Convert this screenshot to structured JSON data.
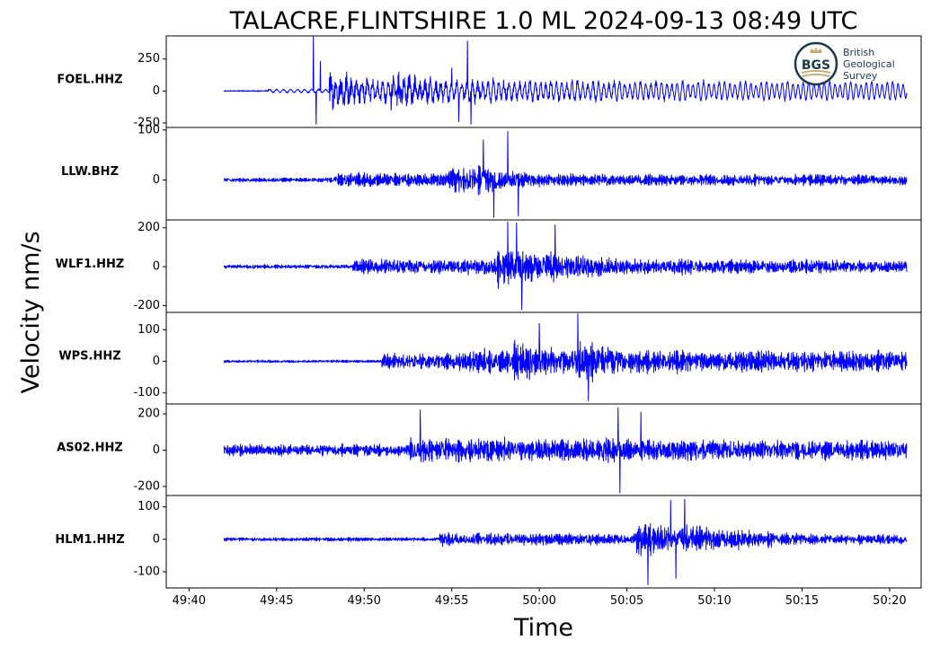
{
  "colors": {
    "trace": "#0000ff",
    "axes": "#000000",
    "logo": "#1c3a4a",
    "logo_accent": "#c9a66b"
  },
  "logo": {
    "mark": "BGS",
    "lines": [
      "British",
      "Geological",
      "Survey"
    ]
  },
  "chart_data": {
    "type": "line",
    "title": "TALACRE,FLINTSHIRE 1.0 ML   2024-09-13 08:49 UTC",
    "xlabel": "Time",
    "ylabel": "Velocity nm/s",
    "grid": false,
    "x_ticks": [
      "49:40",
      "49:45",
      "49:50",
      "49:55",
      "50:00",
      "50:05",
      "50:10",
      "50:15",
      "50:20"
    ],
    "x_range_seconds_from_49_40": [
      -1.3,
      41.8
    ],
    "data_range_seconds_from_49_40": [
      2.0,
      41.0
    ],
    "panels": [
      {
        "station": "FOEL.HHZ",
        "yticks": [
          250,
          0,
          -250
        ],
        "ylim": [
          -285,
          430
        ],
        "noise": 6,
        "segments": [
          {
            "t": 4.5,
            "amp": 12,
            "decay": 99,
            "period": 0.4,
            "kind": "sine"
          },
          {
            "t": 8.0,
            "amp": 60,
            "decay": 99,
            "period": 0.3,
            "kind": "ramp"
          },
          {
            "t": 8.0,
            "amp": 170,
            "decay": 3.2
          },
          {
            "t": 11.5,
            "amp": 150,
            "decay": 4.0
          },
          {
            "t": 16.0,
            "amp": 70,
            "decay": 12
          }
        ],
        "spikes": [
          {
            "t": 7.1,
            "v": 430
          },
          {
            "t": 7.25,
            "v": -260
          },
          {
            "t": 7.5,
            "v": 230
          },
          {
            "t": 15.0,
            "v": 180
          },
          {
            "t": 15.4,
            "v": -240
          },
          {
            "t": 15.9,
            "v": 390
          },
          {
            "t": 16.1,
            "v": -260
          }
        ]
      },
      {
        "station": "LLW.BHZ",
        "yticks": [
          100,
          0
        ],
        "ylim": [
          -80,
          105
        ],
        "noise": 6,
        "segments": [
          {
            "t": 8.3,
            "amp": 20,
            "decay": 99
          },
          {
            "t": 14.8,
            "amp": 45,
            "decay": 3.0
          },
          {
            "t": 16.5,
            "amp": 50,
            "decay": 3.5
          },
          {
            "t": 19.0,
            "amp": 22,
            "decay": 8
          }
        ],
        "spikes": [
          {
            "t": 16.8,
            "v": 80
          },
          {
            "t": 17.4,
            "v": -75
          },
          {
            "t": 18.2,
            "v": 97
          },
          {
            "t": 18.8,
            "v": -72
          }
        ]
      },
      {
        "station": "WLF1.HHZ",
        "yticks": [
          200,
          0,
          -200
        ],
        "ylim": [
          -235,
          240
        ],
        "noise": 14,
        "segments": [
          {
            "t": 9.3,
            "amp": 55,
            "decay": 99
          },
          {
            "t": 15.3,
            "amp": 60,
            "decay": 99
          },
          {
            "t": 17.5,
            "amp": 170,
            "decay": 4.5
          },
          {
            "t": 20.5,
            "amp": 120,
            "decay": 6.5
          },
          {
            "t": 26.0,
            "amp": 55,
            "decay": 12
          }
        ],
        "spikes": [
          {
            "t": 18.2,
            "v": 230
          },
          {
            "t": 19.0,
            "v": -220
          },
          {
            "t": 18.7,
            "v": 225
          },
          {
            "t": 20.9,
            "v": 215
          }
        ]
      },
      {
        "station": "WPS.HHZ",
        "yticks": [
          100,
          0,
          -100
        ],
        "ylim": [
          -135,
          155
        ],
        "noise": 6,
        "segments": [
          {
            "t": 11.0,
            "amp": 38,
            "decay": 99
          },
          {
            "t": 16.0,
            "amp": 55,
            "decay": 99
          },
          {
            "t": 18.5,
            "amp": 95,
            "decay": 6.0
          },
          {
            "t": 22.0,
            "amp": 90,
            "decay": 6.5
          },
          {
            "t": 27.0,
            "amp": 55,
            "decay": 14
          }
        ],
        "spikes": [
          {
            "t": 22.2,
            "v": 150
          },
          {
            "t": 22.8,
            "v": -125
          },
          {
            "t": 20.0,
            "v": 120
          }
        ]
      },
      {
        "station": "AS02.HHZ",
        "yticks": [
          200,
          0,
          -200
        ],
        "ylim": [
          -250,
          255
        ],
        "noise": 45,
        "segments": [
          {
            "t": 12.6,
            "amp": 95,
            "decay": 99
          },
          {
            "t": 23.5,
            "amp": 120,
            "decay": 4.0
          },
          {
            "t": 25.0,
            "amp": 95,
            "decay": 8
          }
        ],
        "spikes": [
          {
            "t": 13.2,
            "v": 220
          },
          {
            "t": 24.5,
            "v": 235
          },
          {
            "t": 24.6,
            "v": -235
          },
          {
            "t": 25.8,
            "v": 210
          }
        ]
      },
      {
        "station": "HLM1.HHZ",
        "yticks": [
          100,
          0,
          -100
        ],
        "ylim": [
          -150,
          135
        ],
        "noise": 8,
        "segments": [
          {
            "t": 14.3,
            "amp": 28,
            "decay": 99
          },
          {
            "t": 25.5,
            "amp": 75,
            "decay": 5.0
          },
          {
            "t": 28.0,
            "amp": 70,
            "decay": 6.5
          }
        ],
        "spikes": [
          {
            "t": 26.2,
            "v": -140
          },
          {
            "t": 27.5,
            "v": 120
          },
          {
            "t": 28.3,
            "v": 123
          },
          {
            "t": 27.8,
            "v": -120
          }
        ]
      }
    ]
  }
}
